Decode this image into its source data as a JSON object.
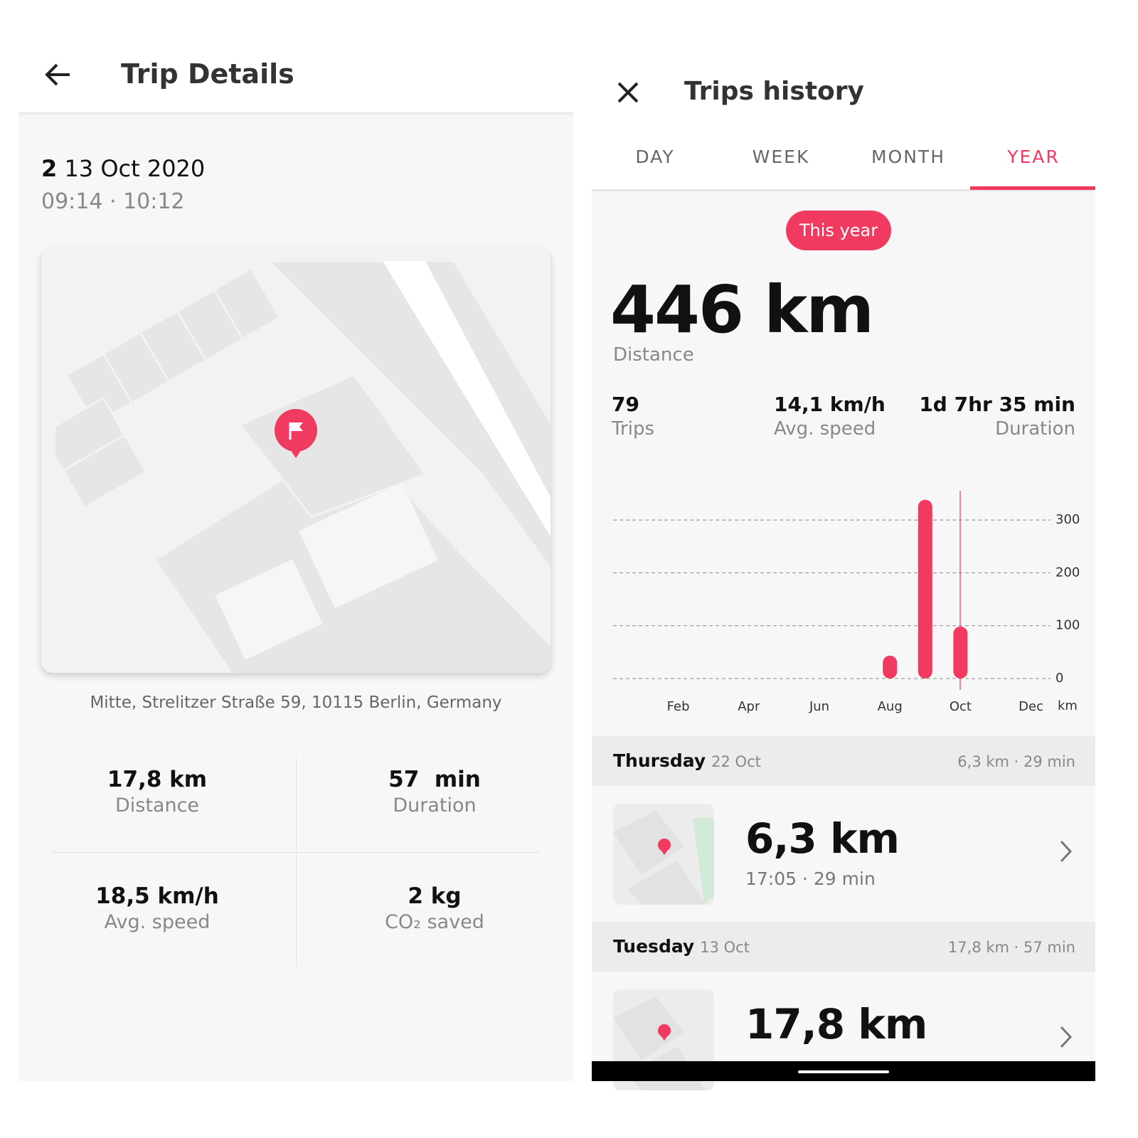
{
  "left": {
    "header": {
      "title": "Trip Details"
    },
    "trip": {
      "number": "2",
      "date": "13 Oct 2020",
      "time": "09:14 · 10:12"
    },
    "address": "Mitte, Strelitzer Straße 59, 10115 Berlin, Germany",
    "stats": [
      {
        "value": "17,8 km",
        "label": "Distance"
      },
      {
        "value": "57  min",
        "label": "Duration"
      },
      {
        "value": "18,5 km/h",
        "label": "Avg. speed"
      },
      {
        "value": "2 kg",
        "label": "CO₂ saved"
      }
    ]
  },
  "right": {
    "header": {
      "title": "Trips history"
    },
    "tabs": [
      "DAY",
      "WEEK",
      "MONTH",
      "YEAR"
    ],
    "period": "This year",
    "total": {
      "value": "446 km",
      "label": "Distance"
    },
    "stats": [
      {
        "value": "79",
        "label": "Trips"
      },
      {
        "value": "14,1 km/h",
        "label": "Avg. speed"
      },
      {
        "value": "1d 7hr 35 min",
        "label": "Duration"
      }
    ],
    "days": [
      {
        "day": "Thursday",
        "date": "22 Oct",
        "summary": "6,3 km · 29 min",
        "trip": {
          "distance": "6,3 km",
          "detail": "17:05 · 29 min"
        }
      },
      {
        "day": "Tuesday",
        "date": "13 Oct",
        "summary": "17,8 km · 57 min",
        "trip": {
          "distance": "17,8 km"
        }
      }
    ]
  },
  "chart_data": {
    "type": "bar",
    "categories": [
      null,
      "Feb",
      null,
      "Apr",
      null,
      "Jun",
      null,
      "Aug",
      null,
      "Oct",
      null,
      "Dec"
    ],
    "values": [
      null,
      null,
      null,
      null,
      null,
      null,
      null,
      30,
      325,
      85,
      null,
      null
    ],
    "color": "#f03a5f",
    "ylim": [
      0,
      350
    ],
    "yticks": [
      0,
      100,
      200,
      300
    ],
    "y_unit": "km",
    "grid": true
  }
}
